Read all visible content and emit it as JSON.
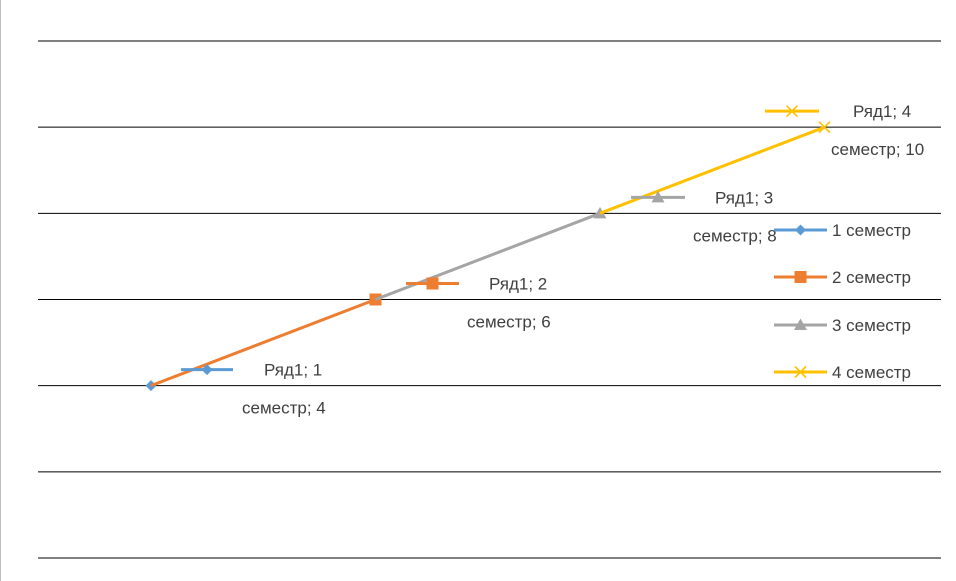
{
  "chart_data": {
    "type": "line",
    "categories": [
      "1 семестр",
      "2 семестр",
      "3 семестр",
      "4 семестр"
    ],
    "ylim": [
      0,
      12
    ],
    "y_gridlines": [
      0,
      2,
      4,
      6,
      8,
      10,
      12
    ],
    "grid": true,
    "legend_placement": "right",
    "series": [
      {
        "name": "1 семестр",
        "color": "#5B9BD5",
        "marker": "diamond",
        "points": [
          [
            1,
            4
          ]
        ]
      },
      {
        "name": "2 семестр",
        "color": "#ED7D31",
        "marker": "square",
        "points": [
          [
            1,
            4
          ],
          [
            2,
            6
          ]
        ]
      },
      {
        "name": "3 семестр",
        "color": "#A5A5A5",
        "marker": "triangle",
        "points": [
          [
            2,
            6
          ],
          [
            3,
            8
          ]
        ]
      },
      {
        "name": "4 семестр",
        "color": "#FFC000",
        "marker": "x",
        "points": [
          [
            3,
            8
          ],
          [
            4,
            10
          ]
        ]
      }
    ],
    "data_labels": [
      {
        "series_index": 0,
        "line1": "Ряд1; 1",
        "line2": "семестр; 4"
      },
      {
        "series_index": 1,
        "line1": "Ряд1; 2",
        "line2": "семестр; 6"
      },
      {
        "series_index": 2,
        "line1": "Ряд1; 3",
        "line2": "семестр; 8"
      },
      {
        "series_index": 3,
        "line1": "Ряд1; 4",
        "line2": "семестр; 10"
      }
    ]
  }
}
